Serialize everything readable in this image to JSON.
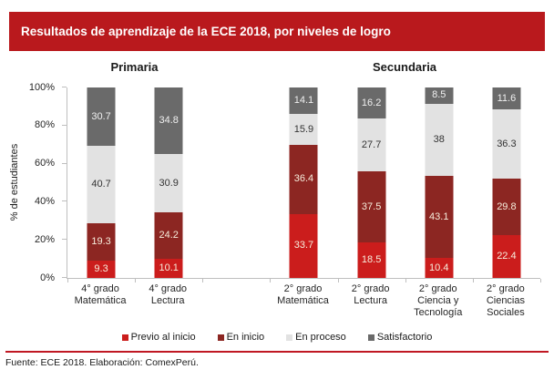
{
  "title": "Resultados de aprendizaje de la ECE 2018, por niveles de logro",
  "footer": "Fuente: ECE 2018. Elaboración: ComexPerú.",
  "colors": {
    "header_bg": "#B9191D",
    "header_text": "#FFFFFF",
    "axis": "#BFBFBF",
    "divider": "#C01823",
    "previo_al_inicio": "#CB1D1C",
    "en_inicio": "#8C2622",
    "en_proceso": "#E2E2E2",
    "satisfactorio": "#6A6A6A"
  },
  "chart_data": {
    "type": "bar",
    "stacked": true,
    "ylabel": "% de estudiantes",
    "ylim": [
      0,
      100
    ],
    "grid": false,
    "legend_position": "bottom",
    "y_ticks": [
      "0%",
      "20%",
      "40%",
      "60%",
      "80%",
      "100%"
    ],
    "groups": [
      {
        "label": "Primaria",
        "slots": [
          0,
          1
        ]
      },
      {
        "label": "Secundaria",
        "slots": [
          3,
          4,
          5,
          6
        ]
      }
    ],
    "categories": [
      [
        "4° grado",
        "Matemática"
      ],
      [
        "4° grado",
        "Lectura"
      ],
      null,
      [
        "2° grado",
        "Matemática"
      ],
      [
        "2° grado",
        "Lectura"
      ],
      [
        "2° grado",
        "Ciencia y",
        "Tecnología"
      ],
      [
        "2° grado",
        "Ciencias",
        "Sociales"
      ]
    ],
    "series": [
      {
        "name": "Previo al inicio",
        "color": "#CB1D1C",
        "label_color": "#F6EDDC",
        "values": [
          9.3,
          10.1,
          null,
          33.7,
          18.5,
          10.4,
          22.4
        ]
      },
      {
        "name": "En inicio",
        "color": "#8C2622",
        "label_color": "#F6EDDC",
        "values": [
          19.3,
          24.2,
          null,
          36.4,
          37.5,
          43.1,
          29.8
        ]
      },
      {
        "name": "En proceso",
        "color": "#E2E2E2",
        "label_color": "#333333",
        "values": [
          40.7,
          30.9,
          null,
          15.9,
          27.7,
          38,
          36.3
        ]
      },
      {
        "name": "Satisfactorio",
        "color": "#6A6A6A",
        "label_color": "#F0F0F0",
        "values": [
          30.7,
          34.8,
          null,
          14.1,
          16.2,
          8.5,
          11.6
        ]
      }
    ]
  }
}
